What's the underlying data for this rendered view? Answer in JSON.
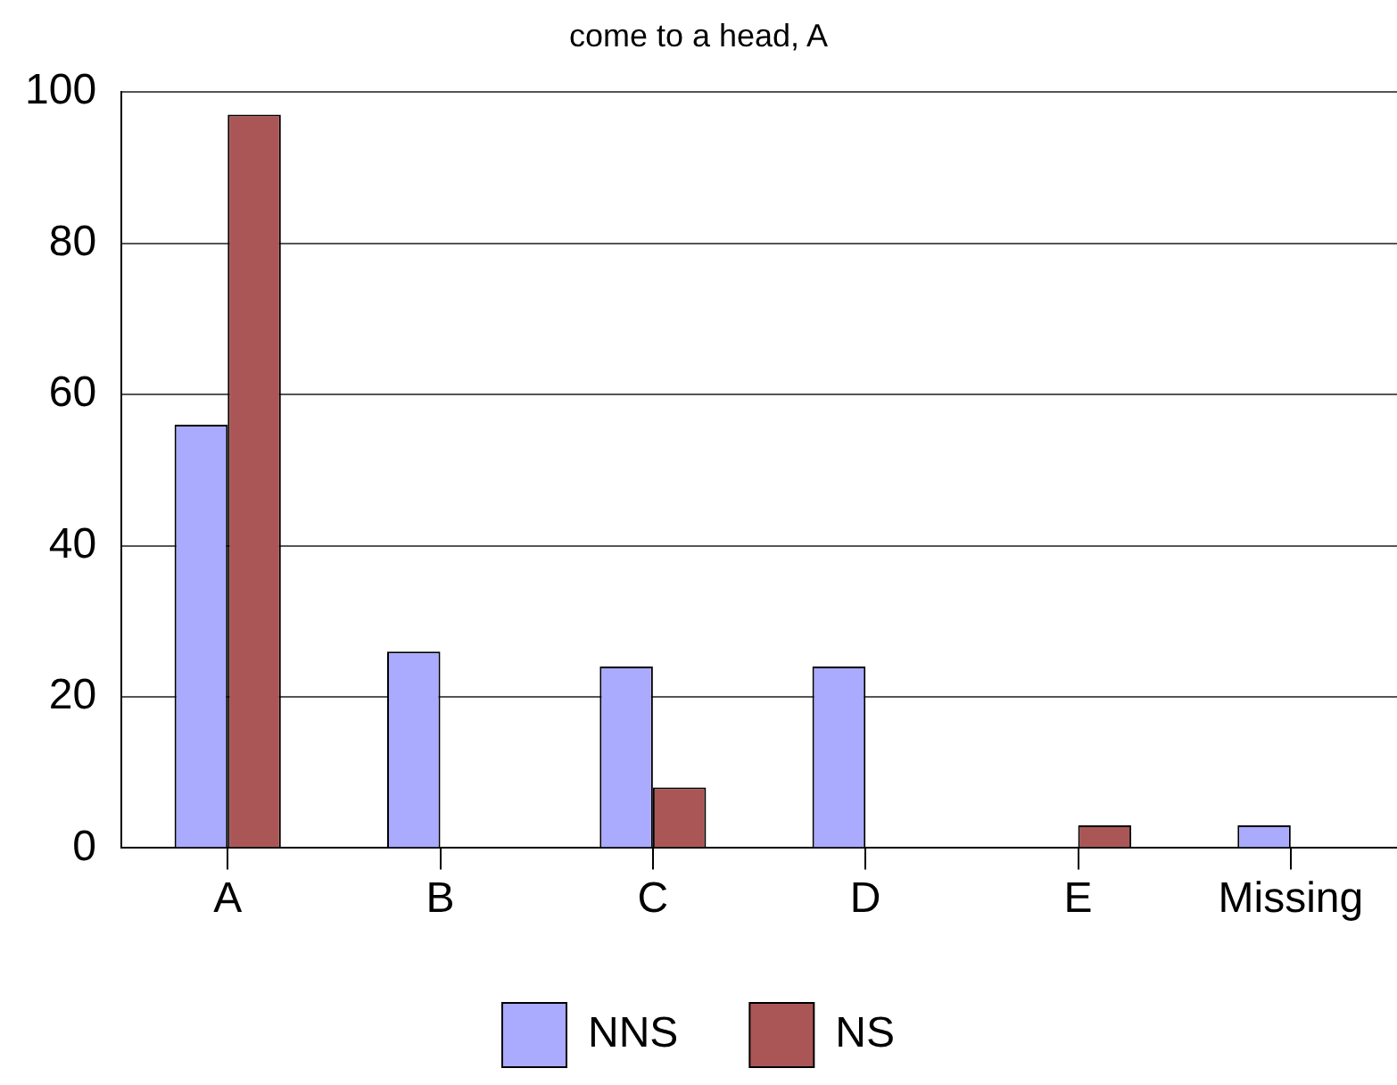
{
  "chart_data": {
    "type": "bar",
    "title": "come to a head, A",
    "categories": [
      "A",
      "B",
      "C",
      "D",
      "E",
      "Missing"
    ],
    "series": [
      {
        "name": "NNS",
        "color": "#aaaaff",
        "values": [
          56,
          26,
          24,
          24,
          0,
          3
        ]
      },
      {
        "name": "NS",
        "color": "#ab5656",
        "values": [
          97,
          0,
          8,
          0,
          3,
          0
        ]
      }
    ],
    "ylim": [
      0,
      100
    ],
    "yticks": [
      0,
      20,
      40,
      60,
      80,
      100
    ],
    "grid": "y",
    "legend": "bottom"
  }
}
